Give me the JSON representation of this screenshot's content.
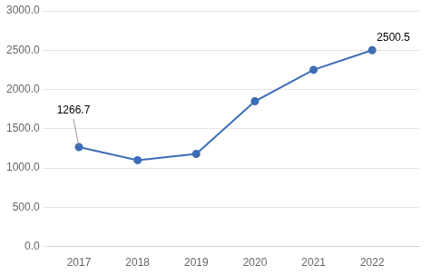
{
  "chart_data": {
    "type": "line",
    "x": [
      2017,
      2018,
      2019,
      2020,
      2021,
      2022
    ],
    "values": [
      1266.7,
      1100.0,
      1180.0,
      1850.0,
      2250.0,
      2500.5
    ],
    "color": "#3d6db5",
    "marker": "circle",
    "xlim": [
      2016.5,
      2022.8
    ],
    "xticks": [
      2017,
      2018,
      2019,
      2020,
      2021,
      2022
    ],
    "ylim": [
      0,
      3000
    ],
    "yticks": [
      {
        "value": 0,
        "label": "0.0"
      },
      {
        "value": 500,
        "label": "500.0"
      },
      {
        "value": 1000,
        "label": "1000.0"
      },
      {
        "value": 1500,
        "label": "1500.0"
      },
      {
        "value": 2000,
        "label": "2000.0"
      },
      {
        "value": 2500,
        "label": "2500.0"
      },
      {
        "value": 3000,
        "label": "3000.0"
      }
    ],
    "grid": "y",
    "annotations": [
      {
        "text": "1266.7",
        "x": 2017,
        "y": 1266.7
      },
      {
        "text": "2500.5",
        "x": 2022,
        "y": 2500.5
      }
    ]
  }
}
